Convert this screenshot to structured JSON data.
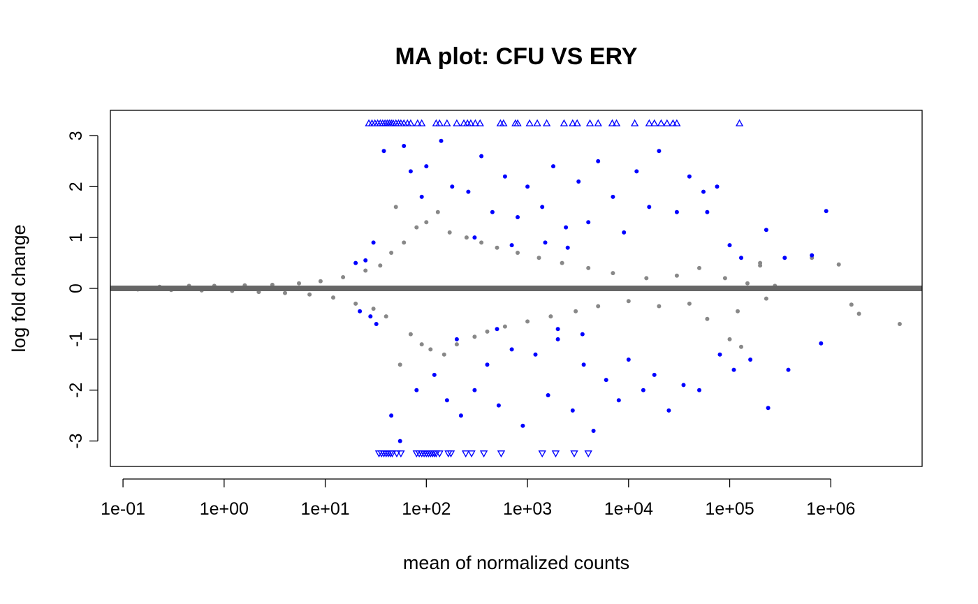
{
  "chart_data": {
    "type": "scatter",
    "title": "MA plot: CFU VS ERY",
    "xlabel": "mean of normalized counts",
    "ylabel": "log fold change",
    "x_scale": "log10",
    "xlim": [
      0.075,
      8000000
    ],
    "ylim": [
      -3.5,
      3.5
    ],
    "x_ticks": [
      {
        "value": 0.1,
        "label": "1e-01"
      },
      {
        "value": 1,
        "label": "1e+00"
      },
      {
        "value": 10,
        "label": "1e+01"
      },
      {
        "value": 100,
        "label": "1e+02"
      },
      {
        "value": 1000,
        "label": "1e+03"
      },
      {
        "value": 10000,
        "label": "1e+04"
      },
      {
        "value": 100000,
        "label": "1e+05"
      },
      {
        "value": 1000000,
        "label": "1e+06"
      }
    ],
    "y_ticks": [
      {
        "value": -3,
        "label": "-3"
      },
      {
        "value": -2,
        "label": "-2"
      },
      {
        "value": -1,
        "label": "-1"
      },
      {
        "value": 0,
        "label": "0"
      },
      {
        "value": 1,
        "label": "1"
      },
      {
        "value": 2,
        "label": "2"
      },
      {
        "value": 3,
        "label": "3"
      }
    ],
    "reference_line": {
      "y": 0,
      "color": "#666666"
    },
    "grid": false,
    "legend": "none",
    "series": [
      {
        "color": "#888888",
        "marker": "dot",
        "points": [
          [
            0.14,
            -0.02
          ],
          [
            0.23,
            0.03
          ],
          [
            0.3,
            -0.03
          ],
          [
            0.45,
            0.05
          ],
          [
            0.6,
            -0.04
          ],
          [
            0.8,
            0.05
          ],
          [
            1.2,
            -0.05
          ],
          [
            1.6,
            0.06
          ],
          [
            2.2,
            -0.07
          ],
          [
            3,
            0.07
          ],
          [
            4,
            -0.09
          ],
          [
            5.5,
            0.1
          ],
          [
            7,
            -0.12
          ],
          [
            9,
            0.14
          ],
          [
            12,
            -0.18
          ],
          [
            15,
            0.22
          ],
          [
            20,
            -0.3
          ],
          [
            25,
            0.35
          ],
          [
            30,
            -0.4
          ],
          [
            35,
            0.45
          ],
          [
            40,
            -0.55
          ],
          [
            45,
            0.7
          ],
          [
            50,
            1.6
          ],
          [
            55,
            -1.5
          ],
          [
            60,
            0.9
          ],
          [
            70,
            -0.9
          ],
          [
            80,
            1.2
          ],
          [
            90,
            -1.1
          ],
          [
            100,
            1.3
          ],
          [
            110,
            -1.2
          ],
          [
            130,
            1.5
          ],
          [
            150,
            -1.3
          ],
          [
            170,
            1.1
          ],
          [
            200,
            -1.1
          ],
          [
            250,
            1.0
          ],
          [
            300,
            -0.95
          ],
          [
            350,
            0.9
          ],
          [
            400,
            -0.85
          ],
          [
            500,
            0.8
          ],
          [
            600,
            -0.75
          ],
          [
            800,
            0.7
          ],
          [
            1000,
            -0.65
          ],
          [
            1300,
            0.6
          ],
          [
            1700,
            -0.55
          ],
          [
            2200,
            0.5
          ],
          [
            3000,
            -0.45
          ],
          [
            4000,
            0.4
          ],
          [
            5000,
            -0.35
          ],
          [
            7000,
            0.3
          ],
          [
            10000,
            -0.25
          ],
          [
            15000,
            0.2
          ],
          [
            20000,
            -0.35
          ],
          [
            30000,
            0.25
          ],
          [
            40000,
            -0.3
          ],
          [
            50000,
            0.4
          ],
          [
            60000,
            -0.6
          ],
          [
            90000,
            0.2
          ],
          [
            100000,
            -1.0
          ],
          [
            130000,
            -1.15
          ],
          [
            150000,
            0.1
          ],
          [
            200000,
            0.45
          ],
          [
            230000,
            -0.2
          ],
          [
            280000,
            0.05
          ],
          [
            1200000,
            0.47
          ],
          [
            1600000,
            -0.32
          ],
          [
            1900000,
            -0.5
          ],
          [
            4800000,
            -0.7
          ],
          [
            650000,
            0.6
          ],
          [
            200000,
            0.5
          ],
          [
            120000,
            -0.45
          ]
        ]
      },
      {
        "color": "#0000ff",
        "marker": "dot",
        "points": [
          [
            20,
            0.5
          ],
          [
            22,
            -0.45
          ],
          [
            25,
            0.55
          ],
          [
            28,
            -0.55
          ],
          [
            30,
            0.9
          ],
          [
            32,
            -0.7
          ],
          [
            38,
            2.7
          ],
          [
            45,
            -2.5
          ],
          [
            55,
            -3.0
          ],
          [
            60,
            2.8
          ],
          [
            70,
            2.3
          ],
          [
            80,
            -2.0
          ],
          [
            90,
            1.8
          ],
          [
            100,
            2.4
          ],
          [
            120,
            -1.7
          ],
          [
            140,
            2.9
          ],
          [
            160,
            -2.2
          ],
          [
            180,
            2.0
          ],
          [
            220,
            -2.5
          ],
          [
            260,
            1.9
          ],
          [
            300,
            -2.0
          ],
          [
            350,
            2.6
          ],
          [
            400,
            -1.5
          ],
          [
            450,
            1.5
          ],
          [
            520,
            -2.3
          ],
          [
            600,
            2.2
          ],
          [
            700,
            -1.2
          ],
          [
            800,
            1.4
          ],
          [
            900,
            -2.7
          ],
          [
            1000,
            2.0
          ],
          [
            1200,
            -1.3
          ],
          [
            1400,
            1.6
          ],
          [
            1600,
            -2.1
          ],
          [
            1800,
            2.4
          ],
          [
            2000,
            -1.0
          ],
          [
            2400,
            1.2
          ],
          [
            2800,
            -2.4
          ],
          [
            3200,
            2.1
          ],
          [
            3600,
            -1.5
          ],
          [
            4000,
            1.3
          ],
          [
            4500,
            -2.8
          ],
          [
            5000,
            2.5
          ],
          [
            6000,
            -1.8
          ],
          [
            7000,
            1.8
          ],
          [
            8000,
            -2.2
          ],
          [
            9000,
            1.1
          ],
          [
            10000,
            -1.4
          ],
          [
            12000,
            2.3
          ],
          [
            14000,
            -2.0
          ],
          [
            16000,
            1.6
          ],
          [
            18000,
            -1.7
          ],
          [
            20000,
            2.7
          ],
          [
            25000,
            -2.4
          ],
          [
            30000,
            1.5
          ],
          [
            35000,
            -1.9
          ],
          [
            40000,
            2.2
          ],
          [
            50000,
            -2.0
          ],
          [
            55000,
            1.9
          ],
          [
            60000,
            1.5
          ],
          [
            75000,
            2.0
          ],
          [
            80000,
            -1.3
          ],
          [
            100000,
            0.85
          ],
          [
            110000,
            -1.6
          ],
          [
            130000,
            0.6
          ],
          [
            160000,
            -1.4
          ],
          [
            230000,
            1.15
          ],
          [
            240000,
            -2.35
          ],
          [
            350000,
            0.6
          ],
          [
            380000,
            -1.6
          ],
          [
            650000,
            0.65
          ],
          [
            800000,
            -1.08
          ],
          [
            900000,
            1.52
          ],
          [
            2000,
            -0.8
          ],
          [
            2500,
            0.8
          ],
          [
            3500,
            -0.9
          ],
          [
            1500,
            0.9
          ],
          [
            700,
            0.85
          ],
          [
            500,
            -0.8
          ],
          [
            300,
            1.0
          ],
          [
            200,
            -1.0
          ]
        ]
      },
      {
        "color": "#0000ff",
        "marker": "triangle-up",
        "points": [
          [
            27,
            3.25
          ],
          [
            29,
            3.25
          ],
          [
            31,
            3.25
          ],
          [
            33,
            3.25
          ],
          [
            35,
            3.25
          ],
          [
            37,
            3.25
          ],
          [
            39,
            3.25
          ],
          [
            41,
            3.25
          ],
          [
            43,
            3.25
          ],
          [
            45,
            3.25
          ],
          [
            47,
            3.25
          ],
          [
            50,
            3.25
          ],
          [
            53,
            3.25
          ],
          [
            56,
            3.25
          ],
          [
            60,
            3.25
          ],
          [
            65,
            3.25
          ],
          [
            70,
            3.25
          ],
          [
            82,
            3.25
          ],
          [
            90,
            3.25
          ],
          [
            125,
            3.25
          ],
          [
            135,
            3.25
          ],
          [
            160,
            3.25
          ],
          [
            200,
            3.25
          ],
          [
            235,
            3.25
          ],
          [
            255,
            3.25
          ],
          [
            275,
            3.25
          ],
          [
            305,
            3.25
          ],
          [
            340,
            3.25
          ],
          [
            540,
            3.25
          ],
          [
            580,
            3.25
          ],
          [
            760,
            3.25
          ],
          [
            800,
            3.25
          ],
          [
            1050,
            3.25
          ],
          [
            1250,
            3.25
          ],
          [
            1550,
            3.25
          ],
          [
            2300,
            3.25
          ],
          [
            2800,
            3.25
          ],
          [
            3100,
            3.25
          ],
          [
            4150,
            3.25
          ],
          [
            5000,
            3.25
          ],
          [
            6900,
            3.25
          ],
          [
            7600,
            3.25
          ],
          [
            11500,
            3.25
          ],
          [
            16000,
            3.25
          ],
          [
            18000,
            3.25
          ],
          [
            21000,
            3.25
          ],
          [
            24000,
            3.25
          ],
          [
            27500,
            3.25
          ],
          [
            30000,
            3.25
          ],
          [
            125000,
            3.25
          ]
        ]
      },
      {
        "color": "#0000ff",
        "marker": "triangle-down",
        "points": [
          [
            34,
            -3.25
          ],
          [
            36,
            -3.25
          ],
          [
            38,
            -3.25
          ],
          [
            40,
            -3.25
          ],
          [
            42,
            -3.25
          ],
          [
            44,
            -3.25
          ],
          [
            46,
            -3.25
          ],
          [
            51,
            -3.25
          ],
          [
            56,
            -3.25
          ],
          [
            80,
            -3.25
          ],
          [
            85,
            -3.25
          ],
          [
            90,
            -3.25
          ],
          [
            95,
            -3.25
          ],
          [
            100,
            -3.25
          ],
          [
            105,
            -3.25
          ],
          [
            110,
            -3.25
          ],
          [
            115,
            -3.25
          ],
          [
            120,
            -3.25
          ],
          [
            125,
            -3.25
          ],
          [
            135,
            -3.25
          ],
          [
            165,
            -3.25
          ],
          [
            175,
            -3.25
          ],
          [
            245,
            -3.25
          ],
          [
            280,
            -3.25
          ],
          [
            370,
            -3.25
          ],
          [
            550,
            -3.25
          ],
          [
            1400,
            -3.25
          ],
          [
            1900,
            -3.25
          ],
          [
            2900,
            -3.25
          ],
          [
            4000,
            -3.25
          ]
        ]
      }
    ]
  }
}
